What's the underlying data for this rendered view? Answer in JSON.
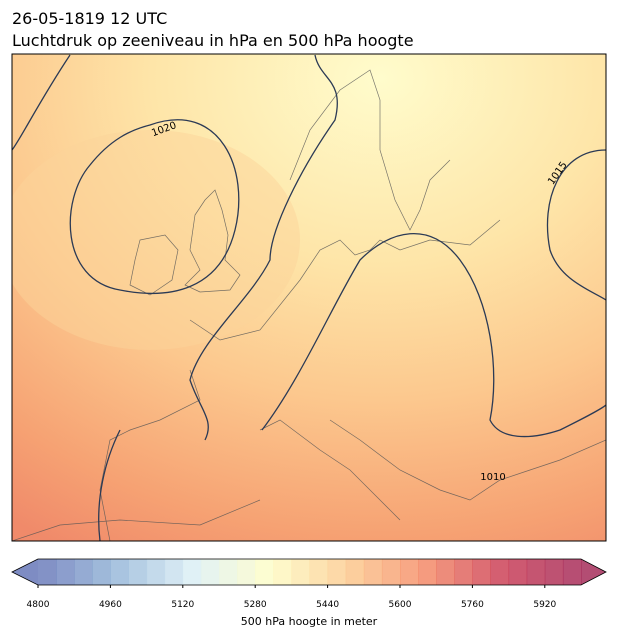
{
  "header": {
    "title": "26-05-1819 12 UTC",
    "subtitle": "Luchtdruk op zeeniveau in hPa en 500 hPa hoogte"
  },
  "map": {
    "contour_labels": [
      "1020",
      "1015",
      "1010"
    ]
  },
  "colorbar": {
    "lim": [
      4800,
      6000
    ],
    "ticks": [
      4800,
      4960,
      5120,
      5280,
      5440,
      5600,
      5760,
      5920
    ],
    "label": "500 hPa hoogte in meter",
    "colormap": [
      "#5e6fb4",
      "#8fb2d6",
      "#d9eef5",
      "#fefdc3",
      "#fcc889",
      "#f4835f",
      "#c7334c",
      "#a02050"
    ]
  }
}
